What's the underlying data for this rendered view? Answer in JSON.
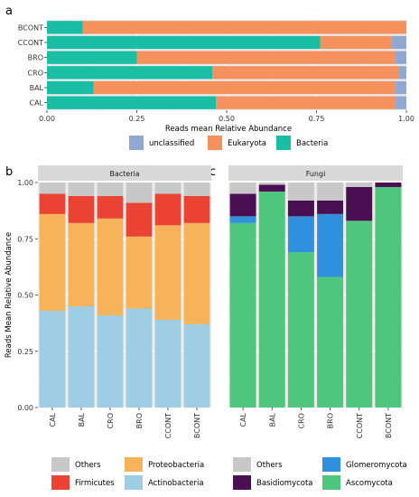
{
  "panel_labels": {
    "a": "a",
    "b": "b",
    "c": "c"
  },
  "colors": {
    "panel_bg": "#ebebeb",
    "strip_bg": "#d9d9d9",
    "grid": "#ffffff",
    "unclassified": "#8fa8d1",
    "eukaryota": "#f4915c",
    "bacteria": "#19bea4",
    "others": "#c8c8c8",
    "firmicutes": "#ea4334",
    "proteobacteria": "#f7b35a",
    "actinobacteria": "#9fcde4",
    "basidiomycota": "#4a0f53",
    "glomeromycota": "#2f90dd",
    "ascomycota": "#4ec67d"
  },
  "chart_data": [
    {
      "id": "a",
      "type": "bar",
      "orientation": "horizontal",
      "stacked": true,
      "title": "",
      "xlabel": "Reads mean Relative Abundance",
      "ylabel": "",
      "categories": [
        "BCONT",
        "CCONT",
        "BRO",
        "CRO",
        "BAL",
        "CAL"
      ],
      "xlim": [
        0,
        1
      ],
      "xticks": [
        "0.00",
        "0.25",
        "0.50",
        "0.75",
        "1.00"
      ],
      "xtick_values": [
        0,
        0.25,
        0.5,
        0.75,
        1
      ],
      "series": [
        {
          "name": "Bacteria",
          "values": [
            0.1,
            0.76,
            0.25,
            0.46,
            0.13,
            0.47
          ]
        },
        {
          "name": "Eukaryota",
          "values": [
            0.9,
            0.2,
            0.72,
            0.52,
            0.84,
            0.5
          ]
        },
        {
          "name": "unclassified",
          "values": [
            0.0,
            0.04,
            0.03,
            0.02,
            0.03,
            0.03
          ]
        }
      ],
      "legend": {
        "position": "bottom",
        "entries": [
          "unclassified",
          "Eukaryota",
          "Bacteria"
        ]
      },
      "grid": true
    },
    {
      "id": "b",
      "type": "bar",
      "stacked": true,
      "title": "Bacteria",
      "xlabel": "",
      "ylabel": "Reads Mean Relative Abundance",
      "categories": [
        "CAL",
        "BAL",
        "CRO",
        "BRO",
        "CCONT",
        "BCONT"
      ],
      "ylim": [
        0,
        1
      ],
      "yticks": [
        "0.00",
        "0.25",
        "0.50",
        "0.75",
        "1.00"
      ],
      "ytick_values": [
        0,
        0.25,
        0.5,
        0.75,
        1
      ],
      "series": [
        {
          "name": "Actinobacteria",
          "values": [
            0.43,
            0.45,
            0.41,
            0.44,
            0.39,
            0.37
          ]
        },
        {
          "name": "Proteobacteria",
          "values": [
            0.43,
            0.37,
            0.43,
            0.32,
            0.42,
            0.45
          ]
        },
        {
          "name": "Firmicutes",
          "values": [
            0.09,
            0.12,
            0.1,
            0.15,
            0.14,
            0.12
          ]
        },
        {
          "name": "Others",
          "values": [
            0.05,
            0.06,
            0.06,
            0.09,
            0.05,
            0.06
          ]
        }
      ],
      "legend": {
        "position": "bottom",
        "entries": [
          "Others",
          "Proteobacteria",
          "Firmicutes",
          "Actinobacteria"
        ]
      },
      "grid": true
    },
    {
      "id": "c",
      "type": "bar",
      "stacked": true,
      "title": "Fungi",
      "xlabel": "",
      "ylabel": "",
      "categories": [
        "CAL",
        "BAL",
        "CRO",
        "BRO",
        "CCONT",
        "BCONT"
      ],
      "ylim": [
        0,
        1
      ],
      "series": [
        {
          "name": "Ascomycota",
          "values": [
            0.82,
            0.96,
            0.69,
            0.58,
            0.83,
            0.98
          ]
        },
        {
          "name": "Glomeromycota",
          "values": [
            0.03,
            0.0,
            0.16,
            0.28,
            0.0,
            0.0
          ]
        },
        {
          "name": "Basidiomycota",
          "values": [
            0.1,
            0.03,
            0.07,
            0.06,
            0.15,
            0.02
          ]
        },
        {
          "name": "Others",
          "values": [
            0.05,
            0.01,
            0.08,
            0.08,
            0.02,
            0.0
          ]
        }
      ],
      "legend": {
        "position": "bottom",
        "entries": [
          "Others",
          "Glomeromycota",
          "Basidiomycota",
          "Ascomycota"
        ]
      },
      "grid": true
    }
  ]
}
